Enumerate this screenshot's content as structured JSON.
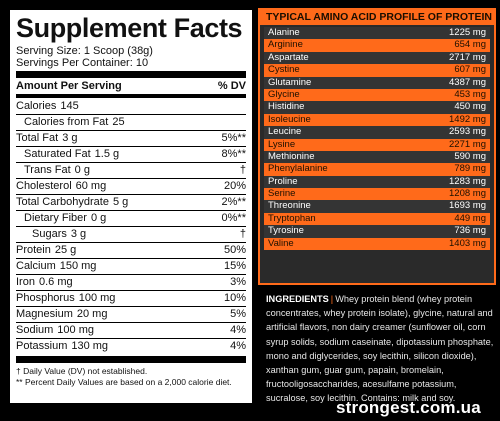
{
  "facts": {
    "title": "Supplement Facts",
    "serving_size": "Serving Size: 1 Scoop (38g)",
    "servings_per_container": "Servings Per Container: 10",
    "header_left": "Amount Per Serving",
    "header_right": "% DV",
    "rows": [
      {
        "name": "Calories",
        "amount": "145",
        "dv": ""
      },
      {
        "name": "Calories from Fat",
        "amount": "25",
        "dv": ""
      },
      {
        "name": "Total Fat",
        "amount": "3 g",
        "dv": "5%**"
      },
      {
        "name": "Saturated Fat",
        "amount": "1.5 g",
        "dv": "8%**"
      },
      {
        "name": "Trans Fat",
        "amount": "0 g",
        "dv": "†"
      },
      {
        "name": "Cholesterol",
        "amount": "60 mg",
        "dv": "20%"
      },
      {
        "name": "Total Carbohydrate",
        "amount": "5 g",
        "dv": "2%**"
      },
      {
        "name": "Dietary Fiber",
        "amount": "0 g",
        "dv": "0%**"
      },
      {
        "name": "Sugars",
        "amount": "3 g",
        "dv": "†"
      },
      {
        "name": "Protein",
        "amount": "25 g",
        "dv": "50%"
      },
      {
        "name": "Calcium",
        "amount": "150 mg",
        "dv": "15%"
      },
      {
        "name": "Iron",
        "amount": "0.6 mg",
        "dv": "3%"
      },
      {
        "name": "Phosphorus",
        "amount": "100 mg",
        "dv": "10%"
      },
      {
        "name": "Magnesium",
        "amount": "20 mg",
        "dv": "5%"
      },
      {
        "name": "Sodium",
        "amount": "100 mg",
        "dv": "4%"
      },
      {
        "name": "Potassium",
        "amount": "130 mg",
        "dv": "4%"
      }
    ],
    "footnote_1": "† Daily Value (DV) not established.",
    "footnote_2": "** Percent Daily Values are based on a 2,000 calorie diet."
  },
  "amino": {
    "title": "TYPICAL AMINO ACID PROFILE OF PROTEIN PER SERVING",
    "rows": [
      {
        "name": "Alanine",
        "value": "1225 mg"
      },
      {
        "name": "Arginine",
        "value": "654 mg"
      },
      {
        "name": "Aspartate",
        "value": "2717 mg"
      },
      {
        "name": "Cystine",
        "value": "607 mg"
      },
      {
        "name": "Glutamine",
        "value": "4387 mg"
      },
      {
        "name": "Glycine",
        "value": "453 mg"
      },
      {
        "name": "Histidine",
        "value": "450 mg"
      },
      {
        "name": "Isoleucine",
        "value": "1492 mg"
      },
      {
        "name": "Leucine",
        "value": "2593 mg"
      },
      {
        "name": "Lysine",
        "value": "2271 mg"
      },
      {
        "name": "Methionine",
        "value": "590 mg"
      },
      {
        "name": "Phenylalanine",
        "value": "789 mg"
      },
      {
        "name": "Proline",
        "value": "1283 mg"
      },
      {
        "name": "Serine",
        "value": "1208 mg"
      },
      {
        "name": "Threonine",
        "value": "1693 mg"
      },
      {
        "name": "Tryptophan",
        "value": "449 mg"
      },
      {
        "name": "Tyrosine",
        "value": "736 mg"
      },
      {
        "name": "Valine",
        "value": "1403 mg"
      }
    ]
  },
  "ingredients": {
    "label": "INGREDIENTS",
    "text": "Whey protein blend (whey protein concentrates, whey protein isolate), glycine, natural and artificial flavors, non dairy creamer (sunflower oil, corn syrup solids, sodium caseinate, dipotassium phosphate, mono and diglycerides, soy lecithin, silicon dioxide), xanthan gum, guar gum, papain, bromelain, fructooligosaccharides, acesulfame potassium, sucralose, soy lecithin. Contains: milk and soy."
  },
  "watermark": "strongest.com.ua",
  "colors": {
    "accent": "#ff6a1a",
    "panel_bg": "#2a2a2a",
    "row_dark": "#343434"
  }
}
